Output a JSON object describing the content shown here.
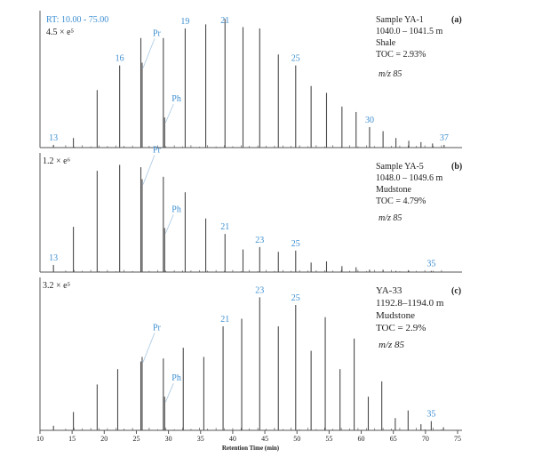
{
  "chart_data": {
    "type": "line",
    "xlabel": "Retention Time (min)",
    "xlim": [
      10,
      75
    ],
    "x_ticks": [
      "10",
      "15",
      "20",
      "25",
      "30",
      "35",
      "40",
      "45",
      "50",
      "55",
      "60",
      "65",
      "70",
      "75"
    ],
    "colors": {
      "trace": "#4a4a4a",
      "label": "#3d8fd1",
      "text": "#222222"
    },
    "panels": [
      {
        "id": "(a)",
        "rt_range": "RT: 10.00 - 75.00",
        "scale": "4.5 × e⁵",
        "info_lines": [
          "Sample YA-1",
          "1040.0 – 1041.5 m",
          "Shale",
          "TOC = 2.93%"
        ],
        "mz": "m/z 85",
        "pr_ph": [
          {
            "name": "Pr",
            "rt": 25.9,
            "value": 0.62
          },
          {
            "name": "Ph",
            "rt": 29.4,
            "value": 0.22
          }
        ],
        "peak_labels": [
          {
            "text": "13",
            "rt": 12.1
          },
          {
            "text": "16",
            "rt": 22.4
          },
          {
            "text": "19",
            "rt": 32.6
          },
          {
            "text": "21",
            "rt": 38.8
          },
          {
            "text": "25",
            "rt": 49.8
          },
          {
            "text": "30",
            "rt": 61.3
          },
          {
            "text": "37",
            "rt": 72.9
          }
        ],
        "peaks": [
          {
            "rt": 12.1,
            "value": 0.02
          },
          {
            "rt": 15.2,
            "value": 0.07
          },
          {
            "rt": 18.9,
            "value": 0.42
          },
          {
            "rt": 22.4,
            "value": 0.6
          },
          {
            "rt": 25.7,
            "value": 0.8
          },
          {
            "rt": 29.2,
            "value": 0.8
          },
          {
            "rt": 32.6,
            "value": 0.87
          },
          {
            "rt": 35.8,
            "value": 0.9
          },
          {
            "rt": 38.8,
            "value": 0.94
          },
          {
            "rt": 41.6,
            "value": 0.88
          },
          {
            "rt": 44.2,
            "value": 0.87
          },
          {
            "rt": 47.1,
            "value": 0.68
          },
          {
            "rt": 49.8,
            "value": 0.6
          },
          {
            "rt": 52.2,
            "value": 0.45
          },
          {
            "rt": 54.6,
            "value": 0.4
          },
          {
            "rt": 57.0,
            "value": 0.3
          },
          {
            "rt": 59.2,
            "value": 0.26
          },
          {
            "rt": 61.3,
            "value": 0.15
          },
          {
            "rt": 63.4,
            "value": 0.12
          },
          {
            "rt": 65.4,
            "value": 0.07
          },
          {
            "rt": 67.4,
            "value": 0.05
          },
          {
            "rt": 69.3,
            "value": 0.04
          },
          {
            "rt": 71.1,
            "value": 0.03
          },
          {
            "rt": 72.9,
            "value": 0.02
          }
        ]
      },
      {
        "id": "(b)",
        "scale": "1.2 × e⁶",
        "info_lines": [
          "Sample YA-5",
          "1048.0 – 1049.6 m",
          "Mudstone",
          "TOC = 4.79%"
        ],
        "mz": "m/z 85",
        "pr_ph": [
          {
            "name": "Pr",
            "rt": 25.9,
            "value": 0.78
          },
          {
            "name": "Ph",
            "rt": 29.4,
            "value": 0.37
          }
        ],
        "peak_labels": [
          {
            "text": "13",
            "rt": 12.1
          },
          {
            "text": "21",
            "rt": 38.8
          },
          {
            "text": "23",
            "rt": 44.2
          },
          {
            "text": "25",
            "rt": 49.8
          },
          {
            "text": "35",
            "rt": 70.9
          }
        ],
        "peaks": [
          {
            "rt": 12.1,
            "value": 0.06
          },
          {
            "rt": 15.2,
            "value": 0.38
          },
          {
            "rt": 18.9,
            "value": 0.85
          },
          {
            "rt": 22.4,
            "value": 0.9
          },
          {
            "rt": 25.7,
            "value": 0.88
          },
          {
            "rt": 29.2,
            "value": 0.8
          },
          {
            "rt": 32.6,
            "value": 0.67
          },
          {
            "rt": 35.8,
            "value": 0.45
          },
          {
            "rt": 38.8,
            "value": 0.32
          },
          {
            "rt": 41.6,
            "value": 0.19
          },
          {
            "rt": 44.2,
            "value": 0.21
          },
          {
            "rt": 47.1,
            "value": 0.17
          },
          {
            "rt": 49.8,
            "value": 0.18
          },
          {
            "rt": 52.2,
            "value": 0.08
          },
          {
            "rt": 54.6,
            "value": 0.09
          },
          {
            "rt": 57.0,
            "value": 0.05
          },
          {
            "rt": 59.2,
            "value": 0.04
          },
          {
            "rt": 61.3,
            "value": 0.02
          },
          {
            "rt": 63.4,
            "value": 0.02
          },
          {
            "rt": 65.4,
            "value": 0.01
          },
          {
            "rt": 67.4,
            "value": 0.01
          },
          {
            "rt": 70.9,
            "value": 0.01
          }
        ]
      },
      {
        "id": "(c)",
        "scale": "3.2 × e⁵",
        "info_lines": [
          "YA-33",
          "1192.8–1194.0 m",
          "Mudstone",
          "TOC = 2.9%"
        ],
        "mz": "m/z 85",
        "pr_ph": [
          {
            "name": "Pr",
            "rt": 25.9,
            "value": 0.48
          },
          {
            "name": "Ph",
            "rt": 29.4,
            "value": 0.22
          }
        ],
        "peak_labels": [
          {
            "text": "21",
            "rt": 38.8
          },
          {
            "text": "23",
            "rt": 44.2
          },
          {
            "text": "25",
            "rt": 49.8
          },
          {
            "text": "35",
            "rt": 70.9
          }
        ],
        "peaks": [
          {
            "rt": 12.1,
            "value": 0.03
          },
          {
            "rt": 15.2,
            "value": 0.12
          },
          {
            "rt": 18.9,
            "value": 0.3
          },
          {
            "rt": 22.1,
            "value": 0.4
          },
          {
            "rt": 25.7,
            "value": 0.45
          },
          {
            "rt": 29.2,
            "value": 0.47
          },
          {
            "rt": 32.3,
            "value": 0.54
          },
          {
            "rt": 35.5,
            "value": 0.48
          },
          {
            "rt": 38.5,
            "value": 0.68
          },
          {
            "rt": 41.4,
            "value": 0.73
          },
          {
            "rt": 44.2,
            "value": 0.87
          },
          {
            "rt": 47.1,
            "value": 0.68
          },
          {
            "rt": 49.8,
            "value": 0.82
          },
          {
            "rt": 52.2,
            "value": 0.52
          },
          {
            "rt": 54.4,
            "value": 0.74
          },
          {
            "rt": 56.7,
            "value": 0.4
          },
          {
            "rt": 58.9,
            "value": 0.6
          },
          {
            "rt": 61.1,
            "value": 0.22
          },
          {
            "rt": 63.2,
            "value": 0.32
          },
          {
            "rt": 65.3,
            "value": 0.08
          },
          {
            "rt": 67.3,
            "value": 0.13
          },
          {
            "rt": 69.3,
            "value": 0.04
          },
          {
            "rt": 70.9,
            "value": 0.06
          },
          {
            "rt": 72.8,
            "value": 0.02
          }
        ]
      }
    ]
  }
}
